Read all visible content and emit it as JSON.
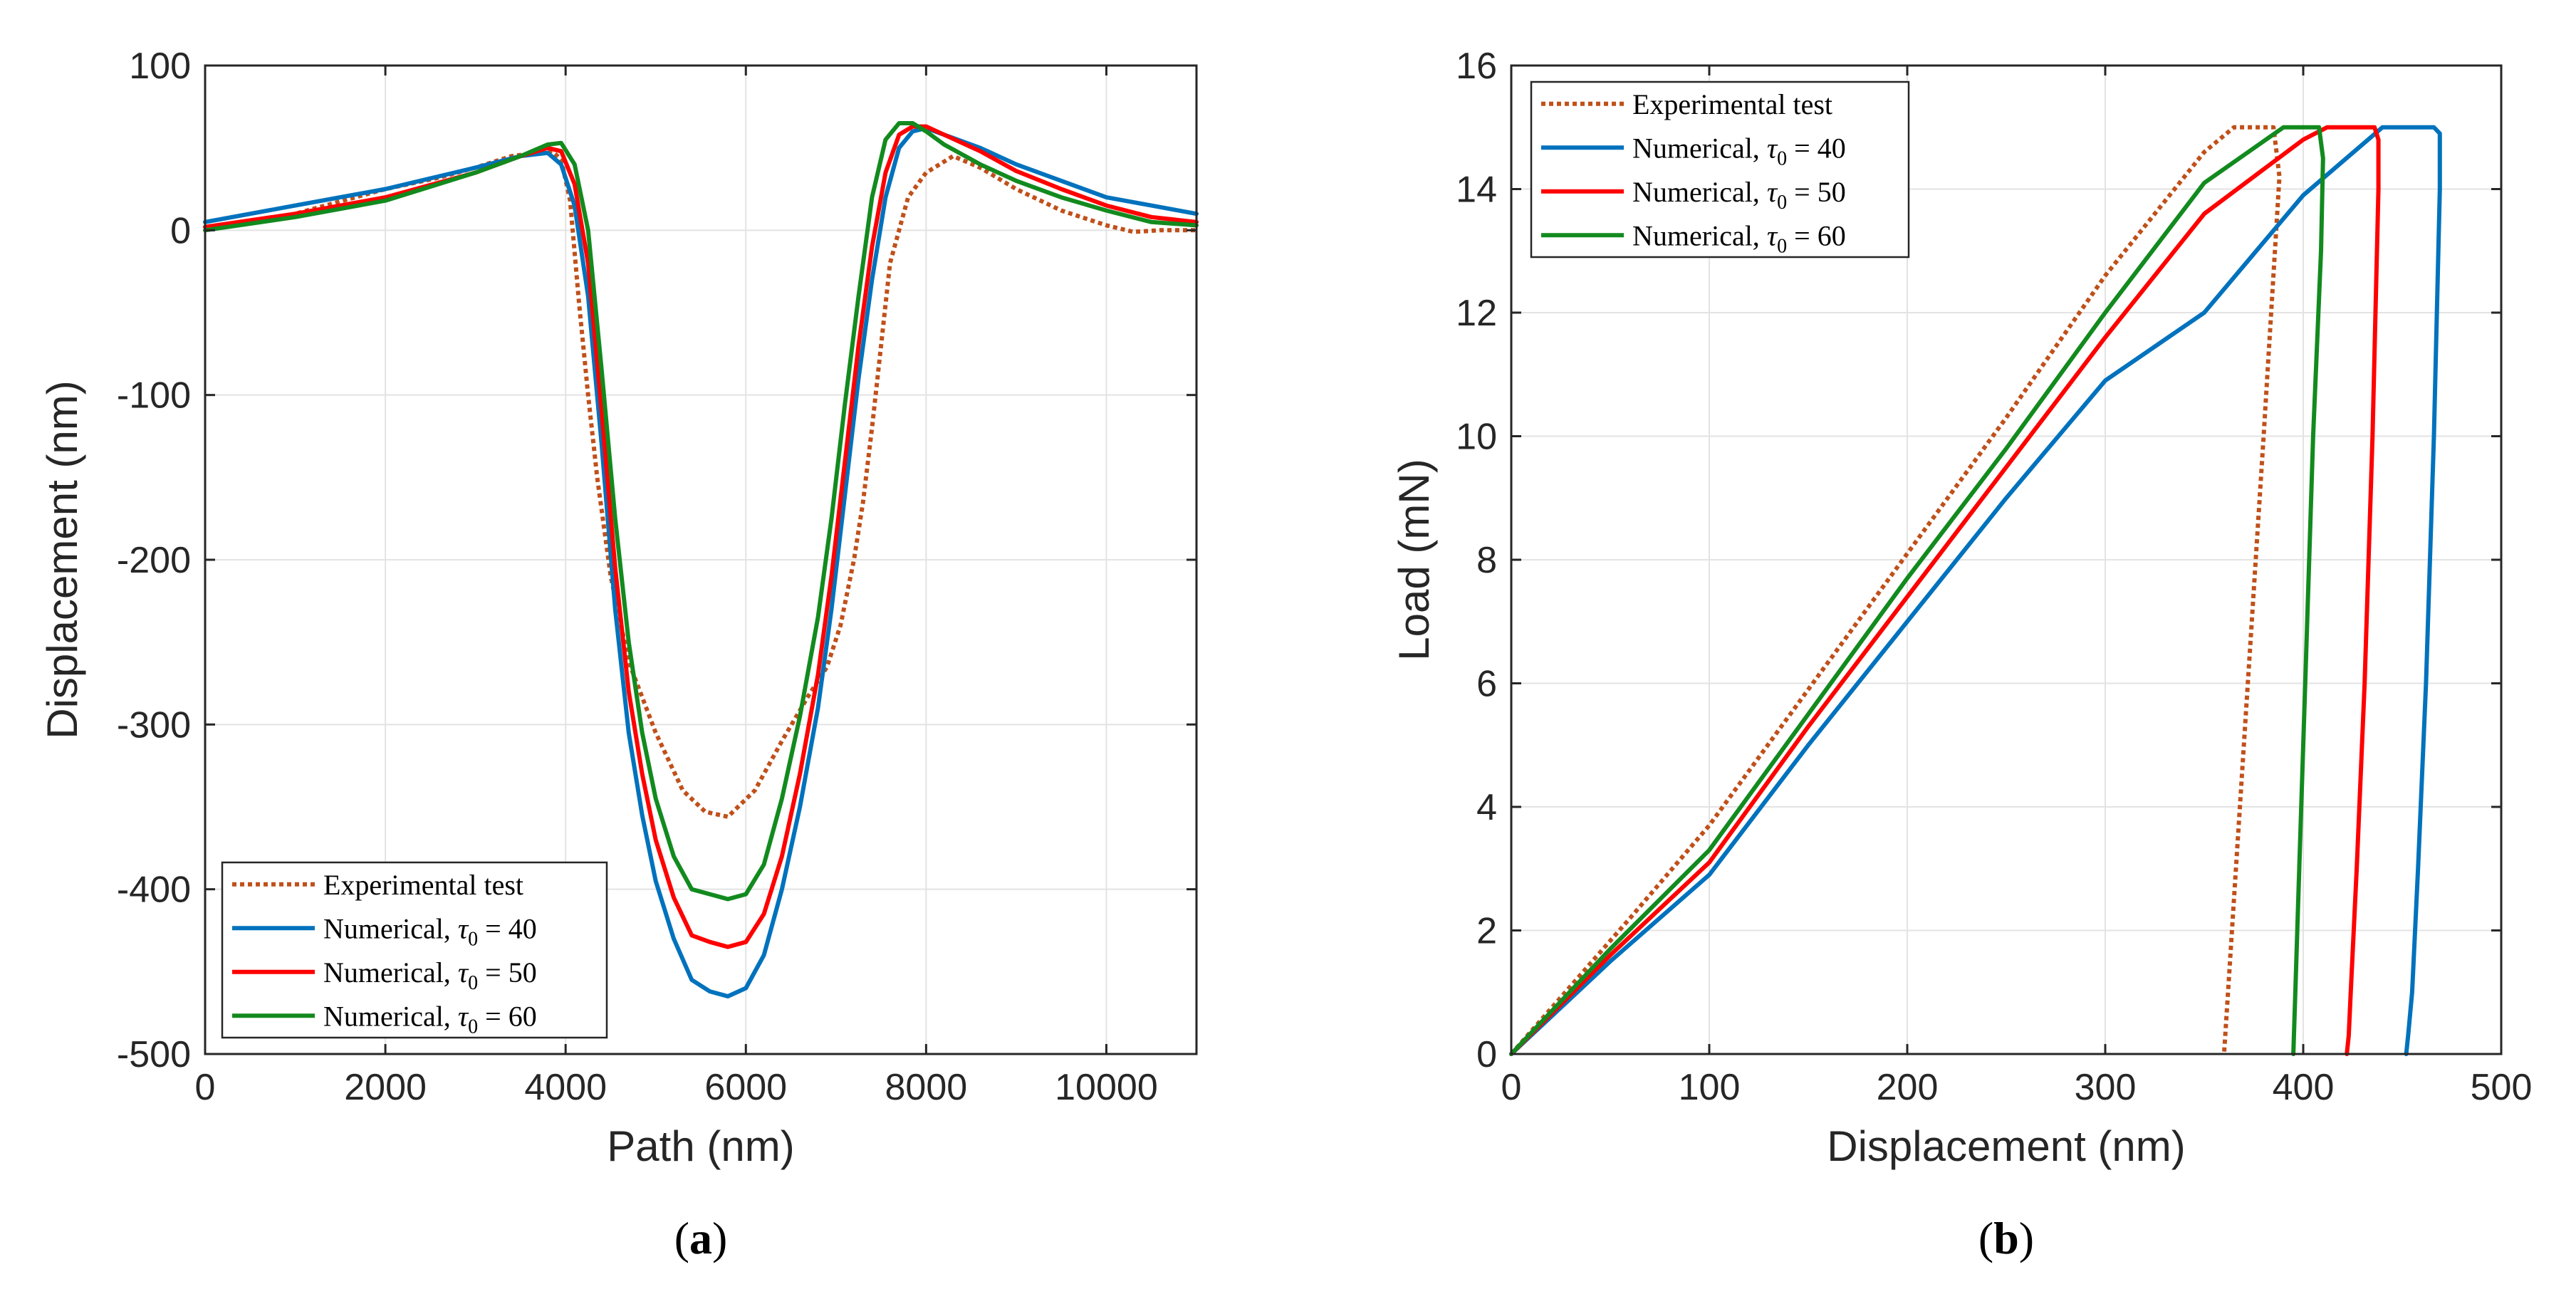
{
  "chart_data": [
    {
      "type": "line",
      "panel_label": "(a)",
      "xlabel": "Path (nm)",
      "ylabel": "Displacement (nm)",
      "xlim": [
        0,
        11000
      ],
      "ylim": [
        -500,
        100
      ],
      "xticks": [
        0,
        2000,
        4000,
        6000,
        8000,
        10000
      ],
      "yticks": [
        -500,
        -400,
        -300,
        -200,
        -100,
        0,
        100
      ],
      "grid": true,
      "legend_position": "bottom-left",
      "series": [
        {
          "name": "Experimental test",
          "name_math": "",
          "color": "#c0501a",
          "style": "dotted",
          "x": [
            0,
            1000,
            2000,
            2600,
            3000,
            3400,
            3700,
            3850,
            3950,
            4050,
            4150,
            4250,
            4350,
            4500,
            4700,
            5000,
            5300,
            5550,
            5800,
            6100,
            6400,
            6700,
            6900,
            7050,
            7200,
            7300,
            7400,
            7500,
            7600,
            7700,
            7800,
            8000,
            8300,
            8600,
            9000,
            9500,
            10000,
            10300,
            10600,
            11000
          ],
          "y": [
            0,
            10,
            25,
            32,
            38,
            45,
            47,
            48,
            43,
            18,
            -45,
            -100,
            -150,
            -210,
            -262,
            -305,
            -340,
            -353,
            -356,
            -340,
            -310,
            -282,
            -265,
            -240,
            -200,
            -165,
            -120,
            -70,
            -20,
            0,
            20,
            35,
            45,
            38,
            25,
            12,
            3,
            -1,
            0,
            0
          ]
        },
        {
          "name": "Numerical, ",
          "name_math": "40",
          "color": "#0072bd",
          "style": "solid",
          "x": [
            0,
            1000,
            2000,
            3000,
            3500,
            3800,
            3950,
            4100,
            4250,
            4400,
            4550,
            4700,
            4850,
            5000,
            5200,
            5400,
            5600,
            5800,
            6000,
            6200,
            6400,
            6600,
            6800,
            6950,
            7100,
            7250,
            7400,
            7550,
            7700,
            7850,
            8000,
            8200,
            8600,
            9000,
            9500,
            10000,
            10500,
            11000
          ],
          "y": [
            5,
            15,
            25,
            38,
            45,
            47,
            40,
            15,
            -40,
            -130,
            -230,
            -305,
            -355,
            -395,
            -430,
            -455,
            -462,
            -465,
            -460,
            -440,
            -400,
            -350,
            -290,
            -230,
            -160,
            -90,
            -30,
            20,
            50,
            60,
            62,
            58,
            50,
            40,
            30,
            20,
            15,
            10
          ]
        },
        {
          "name": "Numerical, ",
          "name_math": "50",
          "color": "#ff0000",
          "style": "solid",
          "x": [
            0,
            1000,
            2000,
            3000,
            3500,
            3800,
            3950,
            4100,
            4250,
            4400,
            4550,
            4700,
            4850,
            5000,
            5200,
            5400,
            5600,
            5800,
            6000,
            6200,
            6400,
            6600,
            6800,
            6950,
            7100,
            7250,
            7400,
            7550,
            7700,
            7850,
            8000,
            8200,
            8600,
            9000,
            9500,
            10000,
            10500,
            11000
          ],
          "y": [
            2,
            10,
            20,
            35,
            45,
            50,
            48,
            28,
            -20,
            -110,
            -205,
            -280,
            -330,
            -370,
            -405,
            -428,
            -432,
            -435,
            -432,
            -415,
            -380,
            -330,
            -270,
            -210,
            -140,
            -70,
            -10,
            35,
            58,
            63,
            63,
            58,
            48,
            36,
            25,
            15,
            8,
            5
          ]
        },
        {
          "name": "Numerical, ",
          "name_math": "60",
          "color": "#128a1e",
          "style": "solid",
          "x": [
            0,
            1000,
            2000,
            3000,
            3500,
            3800,
            3950,
            4100,
            4250,
            4400,
            4550,
            4700,
            4850,
            5000,
            5200,
            5400,
            5600,
            5800,
            6000,
            6200,
            6400,
            6600,
            6800,
            6950,
            7100,
            7250,
            7400,
            7550,
            7700,
            7850,
            8000,
            8200,
            8600,
            9000,
            9500,
            10000,
            10500,
            11000
          ],
          "y": [
            0,
            8,
            18,
            35,
            45,
            52,
            53,
            40,
            0,
            -85,
            -175,
            -250,
            -305,
            -345,
            -380,
            -400,
            -403,
            -406,
            -403,
            -385,
            -345,
            -295,
            -235,
            -175,
            -105,
            -40,
            20,
            55,
            65,
            65,
            60,
            52,
            40,
            30,
            20,
            12,
            5,
            3
          ]
        }
      ]
    },
    {
      "type": "line",
      "panel_label": "(b)",
      "xlabel": "Displacement (nm)",
      "ylabel": "Load (mN)",
      "xlim": [
        0,
        500
      ],
      "ylim": [
        0,
        16
      ],
      "xticks": [
        0,
        100,
        200,
        300,
        400,
        500
      ],
      "yticks": [
        0,
        2,
        4,
        6,
        8,
        10,
        12,
        14,
        16
      ],
      "grid": true,
      "legend_position": "top-left",
      "series": [
        {
          "name": "Experimental test",
          "name_math": "",
          "color": "#c0501a",
          "style": "dotted",
          "x": [
            0,
            60,
            100,
            150,
            200,
            250,
            300,
            350,
            365,
            385,
            388,
            380,
            372,
            366,
            362,
            360
          ],
          "y": [
            0,
            2.2,
            3.7,
            5.9,
            8.1,
            10.3,
            12.6,
            14.6,
            15,
            15,
            14.2,
            10,
            6,
            3,
            1,
            0
          ],
          "name_key": "experimental"
        },
        {
          "name": "Numerical, ",
          "name_math": "40",
          "color": "#0072bd",
          "style": "solid",
          "x": [
            0,
            50,
            100,
            150,
            200,
            250,
            300,
            350,
            400,
            440,
            466,
            469,
            469,
            466,
            462,
            458,
            455,
            453,
            452
          ],
          "y": [
            0,
            1.5,
            2.9,
            5.0,
            7.0,
            9.0,
            10.9,
            12.0,
            13.9,
            15,
            15,
            14.9,
            14,
            10,
            6,
            3,
            1,
            0.3,
            0
          ]
        },
        {
          "name": "Numerical, ",
          "name_math": "50",
          "color": "#ff0000",
          "style": "solid",
          "x": [
            0,
            50,
            100,
            150,
            200,
            250,
            300,
            350,
            400,
            412,
            436,
            438,
            438,
            435,
            431,
            427,
            424,
            423,
            422
          ],
          "y": [
            0,
            1.6,
            3.1,
            5.3,
            7.4,
            9.5,
            11.6,
            13.6,
            14.8,
            15,
            15,
            14.8,
            14,
            10,
            6,
            3,
            1,
            0.3,
            0
          ]
        },
        {
          "name": "Numerical, ",
          "name_math": "60",
          "color": "#128a1e",
          "style": "solid",
          "x": [
            0,
            50,
            100,
            150,
            200,
            250,
            300,
            350,
            390,
            408,
            410,
            409,
            405,
            401,
            398,
            396,
            395
          ],
          "y": [
            0,
            1.7,
            3.3,
            5.5,
            7.7,
            9.8,
            12.0,
            14.1,
            15,
            15,
            14.5,
            13,
            10,
            6,
            3,
            1,
            0
          ]
        }
      ]
    }
  ]
}
